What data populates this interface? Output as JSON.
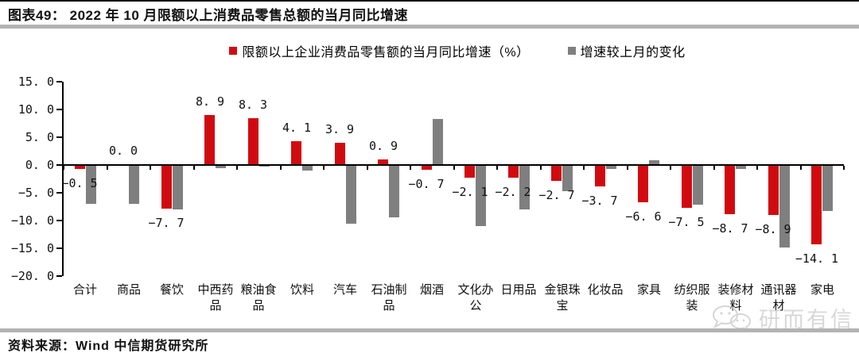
{
  "header": {
    "title": "图表49： 2022 年 10 月限额以上消费品零售总额的当月同比增速"
  },
  "footer": {
    "source": "资料来源：Wind 中信期货研究所"
  },
  "watermark": {
    "text": "研而有信",
    "icon": "wechat-icon"
  },
  "colors": {
    "series_main": "#d10a10",
    "series_change": "#7f7f7f",
    "axis": "#000000",
    "rule": "#b3b3b3",
    "watermark": "#cccccc"
  },
  "chart_data": {
    "type": "bar",
    "title": "2022 年 10 月限额以上消费品零售总额的当月同比增速",
    "categories": [
      "合计",
      "商品",
      "餐饮",
      "中西药品",
      "粮油食品",
      "饮料",
      "汽车",
      "石油制品",
      "烟酒",
      "文化办公",
      "日用品",
      "金银珠宝",
      "化妆品",
      "家具",
      "纺织服装",
      "装修材料",
      "通讯器材",
      "家电"
    ],
    "series": [
      {
        "name": "限额以上企业消费品零售额的当月同比增速（%）",
        "color": "#d10a10",
        "values": [
          -0.5,
          0.0,
          -7.7,
          8.9,
          8.3,
          4.1,
          3.9,
          0.9,
          -0.7,
          -2.1,
          -2.2,
          -2.7,
          -3.7,
          -6.6,
          -7.5,
          -8.7,
          -8.9,
          -14.1
        ],
        "labels": [
          "−0. 5",
          "0. 0",
          "−7. 7",
          "8. 9",
          "8. 3",
          "4. 1",
          "3. 9",
          "0. 9",
          "−0. 7",
          "−2. 1",
          "−2. 2",
          "−2. 7",
          "−3. 7",
          "−6. 6",
          "−7. 5",
          "−8. 7",
          "−8. 9",
          "−14. 1"
        ]
      },
      {
        "name": "增速较上月的变化",
        "color": "#7f7f7f",
        "values": [
          -6.8,
          -6.8,
          -7.9,
          -0.4,
          -0.2,
          -0.9,
          -10.4,
          -9.3,
          8.2,
          -10.9,
          -7.9,
          -4.6,
          -0.6,
          0.7,
          -7.0,
          -0.5,
          -14.7,
          -8.2
        ],
        "labels": []
      }
    ],
    "ylabel": "",
    "xlabel": "",
    "ylim": [
      -20,
      15
    ],
    "ytick_step": 5,
    "yticks": [
      15,
      10,
      5,
      0,
      -5,
      -10,
      -15,
      -20
    ],
    "ytick_labels": [
      "15. 0",
      "10. 0",
      "5. 0",
      "0. 0",
      "−5. 0",
      "−10. 0",
      "−15. 0",
      "−20. 0"
    ],
    "grid": false,
    "legend_position": "top-center",
    "data_labels_series": 0
  }
}
